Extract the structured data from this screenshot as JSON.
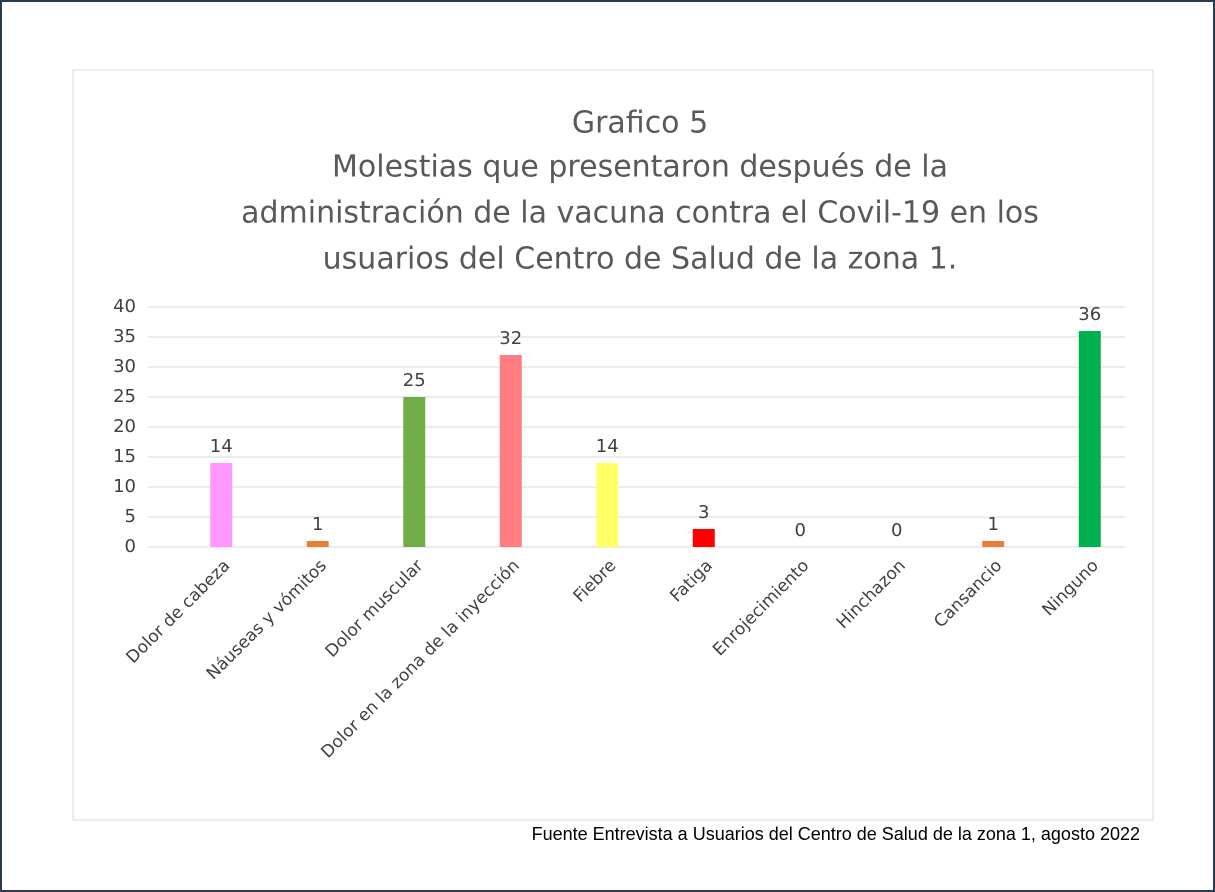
{
  "chart_data": {
    "type": "bar",
    "title": "Grafico 5",
    "subtitle": [
      "Molestias que presentaron después de la",
      "administración de la vacuna contra el Covil-19 en los",
      "usuarios del Centro de Salud de la zona 1."
    ],
    "categories": [
      "Dolor de cabeza",
      "Náuseas y vómitos",
      "Dolor muscular",
      "Dolor en la zona de la inyección",
      "Fiebre",
      "Fatiga",
      "Enrojecimiento",
      "Hinchazon",
      "Cansancio",
      "Ninguno"
    ],
    "values": [
      14,
      1,
      25,
      32,
      14,
      3,
      0,
      0,
      1,
      36
    ],
    "colors": [
      "#ff99ff",
      "#ed7d31",
      "#70ad47",
      "#ff7c80",
      "#ffff66",
      "#ff0000",
      null,
      null,
      "#ed7d31",
      "#00b050"
    ],
    "ylim": [
      0,
      40
    ],
    "yticks": [
      0,
      5,
      10,
      15,
      20,
      25,
      30,
      35,
      40
    ],
    "grid": true,
    "source": "Fuente Entrevista a Usuarios del Centro de Salud de la zona 1, agosto 2022"
  }
}
